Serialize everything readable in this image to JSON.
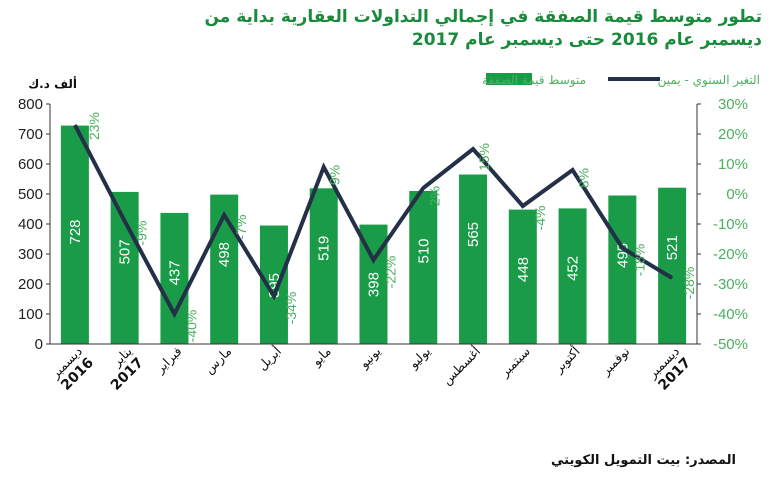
{
  "chart_data": {
    "type": "bar",
    "title": "تطور متوسط قيمة الصفقة في إجمالي التداولات العقارية بداية من ديسمبر عام  2016 حتى ديسمبر عام  2017",
    "y_unit_label": "ألف د.ك",
    "categories": [
      [
        "ديسمبر",
        "2016"
      ],
      [
        "يناير",
        "2017"
      ],
      [
        "فبراير"
      ],
      [
        "مارس"
      ],
      [
        "أبريل"
      ],
      [
        "مايو"
      ],
      [
        "يونيو"
      ],
      [
        "يوليو"
      ],
      [
        "أغسطس"
      ],
      [
        "سبتمبر"
      ],
      [
        "أكتوبر"
      ],
      [
        "نوفمبر"
      ],
      [
        "ديسمبر",
        "2017"
      ]
    ],
    "series": [
      {
        "name": "متوسط قيمة الصفقة",
        "type": "bar",
        "axis": "left",
        "color": "#1a9b48",
        "values": [
          728,
          507,
          437,
          498,
          395,
          519,
          398,
          510,
          565,
          448,
          452,
          495,
          521
        ],
        "labels": [
          "728",
          "507",
          "437",
          "498",
          "395",
          "519",
          "398",
          "510",
          "565",
          "448",
          "452",
          "495",
          "521"
        ]
      },
      {
        "name": "التغير السنوي - يمين",
        "type": "line",
        "axis": "right",
        "color": "#233047",
        "values": [
          23,
          -9,
          -40,
          -7,
          -34,
          9,
          -22,
          2,
          15,
          -4,
          8,
          -18,
          -28
        ],
        "labels": [
          "23%",
          "-9%",
          "-40%",
          "-7%",
          "-34%",
          "9%",
          "-22%",
          "2%",
          "15%",
          "-4%",
          "8%",
          "-18%",
          "-28%"
        ]
      }
    ],
    "y_left": {
      "min": 0,
      "max": 800,
      "ticks": [
        "0",
        "100",
        "200",
        "300",
        "400",
        "500",
        "600",
        "700",
        "800"
      ]
    },
    "y_right": {
      "min": -50,
      "max": 30,
      "ticks": [
        "-50%",
        "-40%",
        "-30%",
        "-20%",
        "-10%",
        "0%",
        "10%",
        "20%",
        "30%"
      ]
    },
    "legend_position": "top",
    "grid": false
  },
  "source_note": "المصدر: بيت التمويل الكويتي",
  "colors": {
    "title": "#1a8a3c",
    "bar": "#1a9b48",
    "line": "#233047",
    "right_axis": "#4caf60"
  }
}
